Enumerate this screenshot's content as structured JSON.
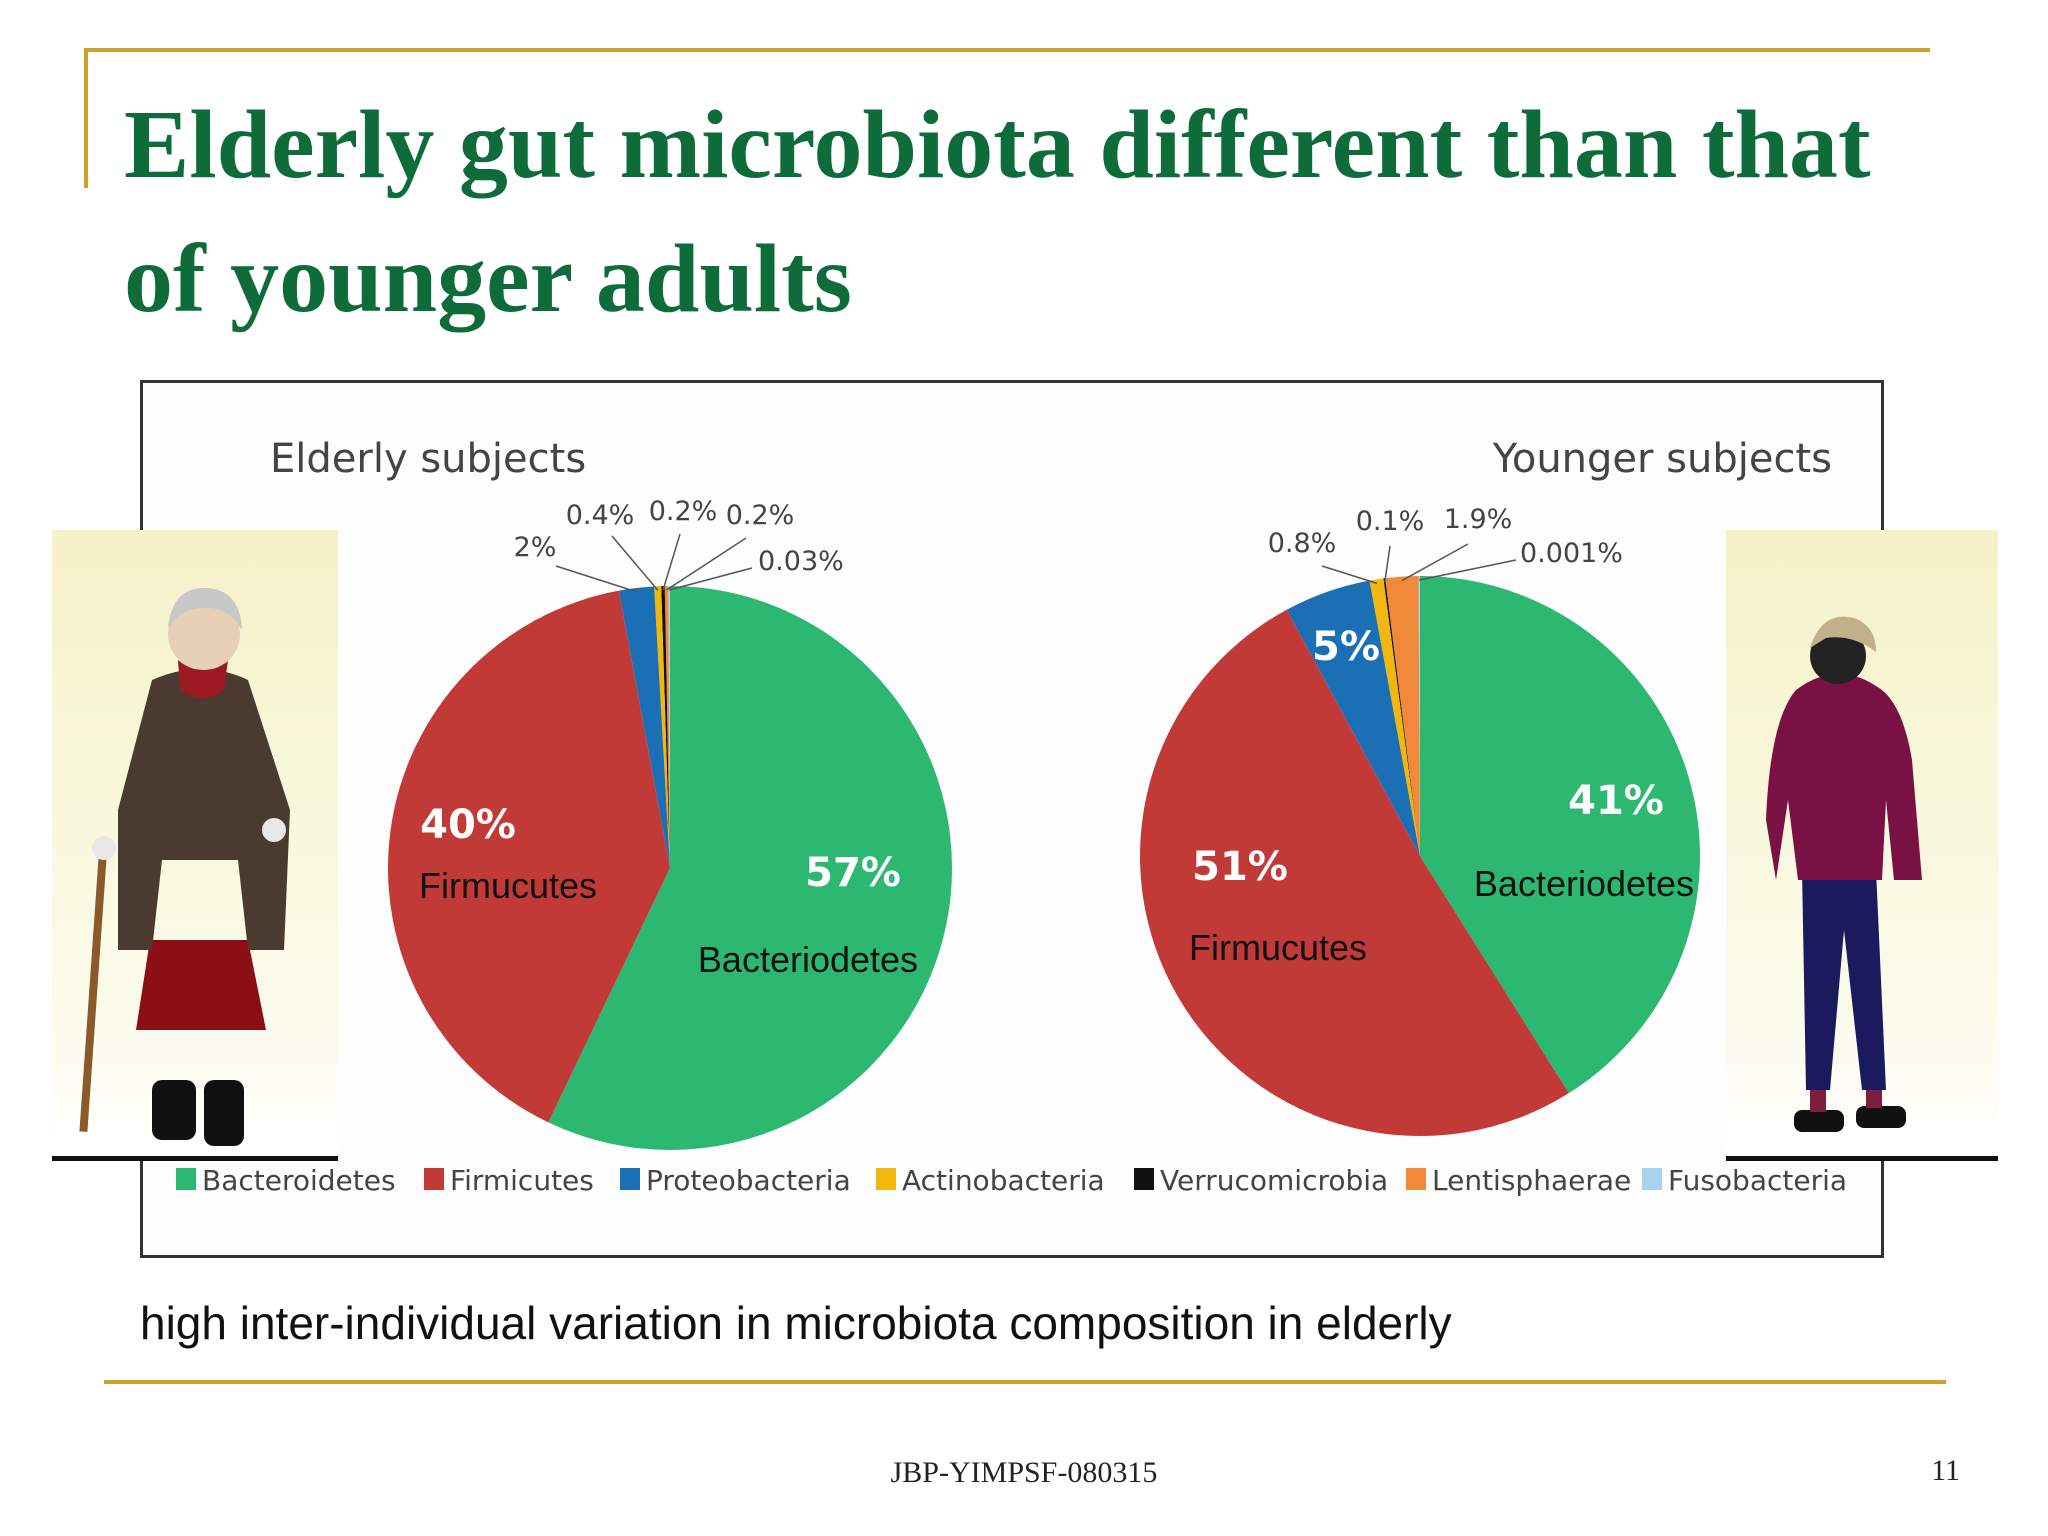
{
  "slide": {
    "title": "Elderly gut microbiota different than that of younger adults",
    "caption": "high inter-individual variation in microbiota composition in elderly",
    "footer": "JBP-YIMPSF-080315",
    "page_number": "11"
  },
  "colors": {
    "title": "#0e6b3a",
    "accent_rule": "#c9a227",
    "Bacteroidetes": "#2db872",
    "Firmicutes": "#c23a37",
    "Proteobacteria": "#1a6fb5",
    "Actinobacteria": "#f1b70c",
    "Verrucomicrobia": "#111111",
    "Lentisphaerae": "#f08a3a",
    "Fusobacteria": "#a7d3ef"
  },
  "chart_data": [
    {
      "type": "pie",
      "title": "Elderly subjects",
      "slices": [
        {
          "name": "Bacteroidetes",
          "value": 57,
          "label": "57%",
          "overlay": "Bacteriodetes"
        },
        {
          "name": "Firmicutes",
          "value": 40,
          "label": "40%",
          "overlay": "Firmucutes"
        },
        {
          "name": "Proteobacteria",
          "value": 2,
          "label": "2%"
        },
        {
          "name": "Actinobacteria",
          "value": 0.4,
          "label": "0.4%"
        },
        {
          "name": "Verrucomicrobia",
          "value": 0.2,
          "label": "0.2%"
        },
        {
          "name": "Lentisphaerae",
          "value": 0.2,
          "label": "0.2%"
        },
        {
          "name": "Fusobacteria",
          "value": 0.03,
          "label": "0.03%"
        }
      ]
    },
    {
      "type": "pie",
      "title": "Younger subjects",
      "slices": [
        {
          "name": "Bacteroidetes",
          "value": 41,
          "label": "41%",
          "overlay": "Bacteriodetes"
        },
        {
          "name": "Firmicutes",
          "value": 51,
          "label": "51%",
          "overlay": "Firmucutes"
        },
        {
          "name": "Proteobacteria",
          "value": 5,
          "label": "5%"
        },
        {
          "name": "Actinobacteria",
          "value": 0.8,
          "label": "0.8%"
        },
        {
          "name": "Verrucomicrobia",
          "value": 0.1,
          "label": "0.1%"
        },
        {
          "name": "Lentisphaerae",
          "value": 1.9,
          "label": "1.9%"
        },
        {
          "name": "Fusobacteria",
          "value": 0.001,
          "label": "0.001%"
        }
      ]
    }
  ],
  "legend": [
    {
      "name": "Bacteroidetes",
      "color": "#2db872"
    },
    {
      "name": "Firmicutes",
      "color": "#c23a37"
    },
    {
      "name": "Proteobacteria",
      "color": "#1a6fb5"
    },
    {
      "name": "Actinobacteria",
      "color": "#f1b70c"
    },
    {
      "name": "Verrucomicrobia",
      "color": "#111111"
    },
    {
      "name": "Lentisphaerae",
      "color": "#f08a3a"
    },
    {
      "name": "Fusobacteria",
      "color": "#a7d3ef"
    }
  ]
}
